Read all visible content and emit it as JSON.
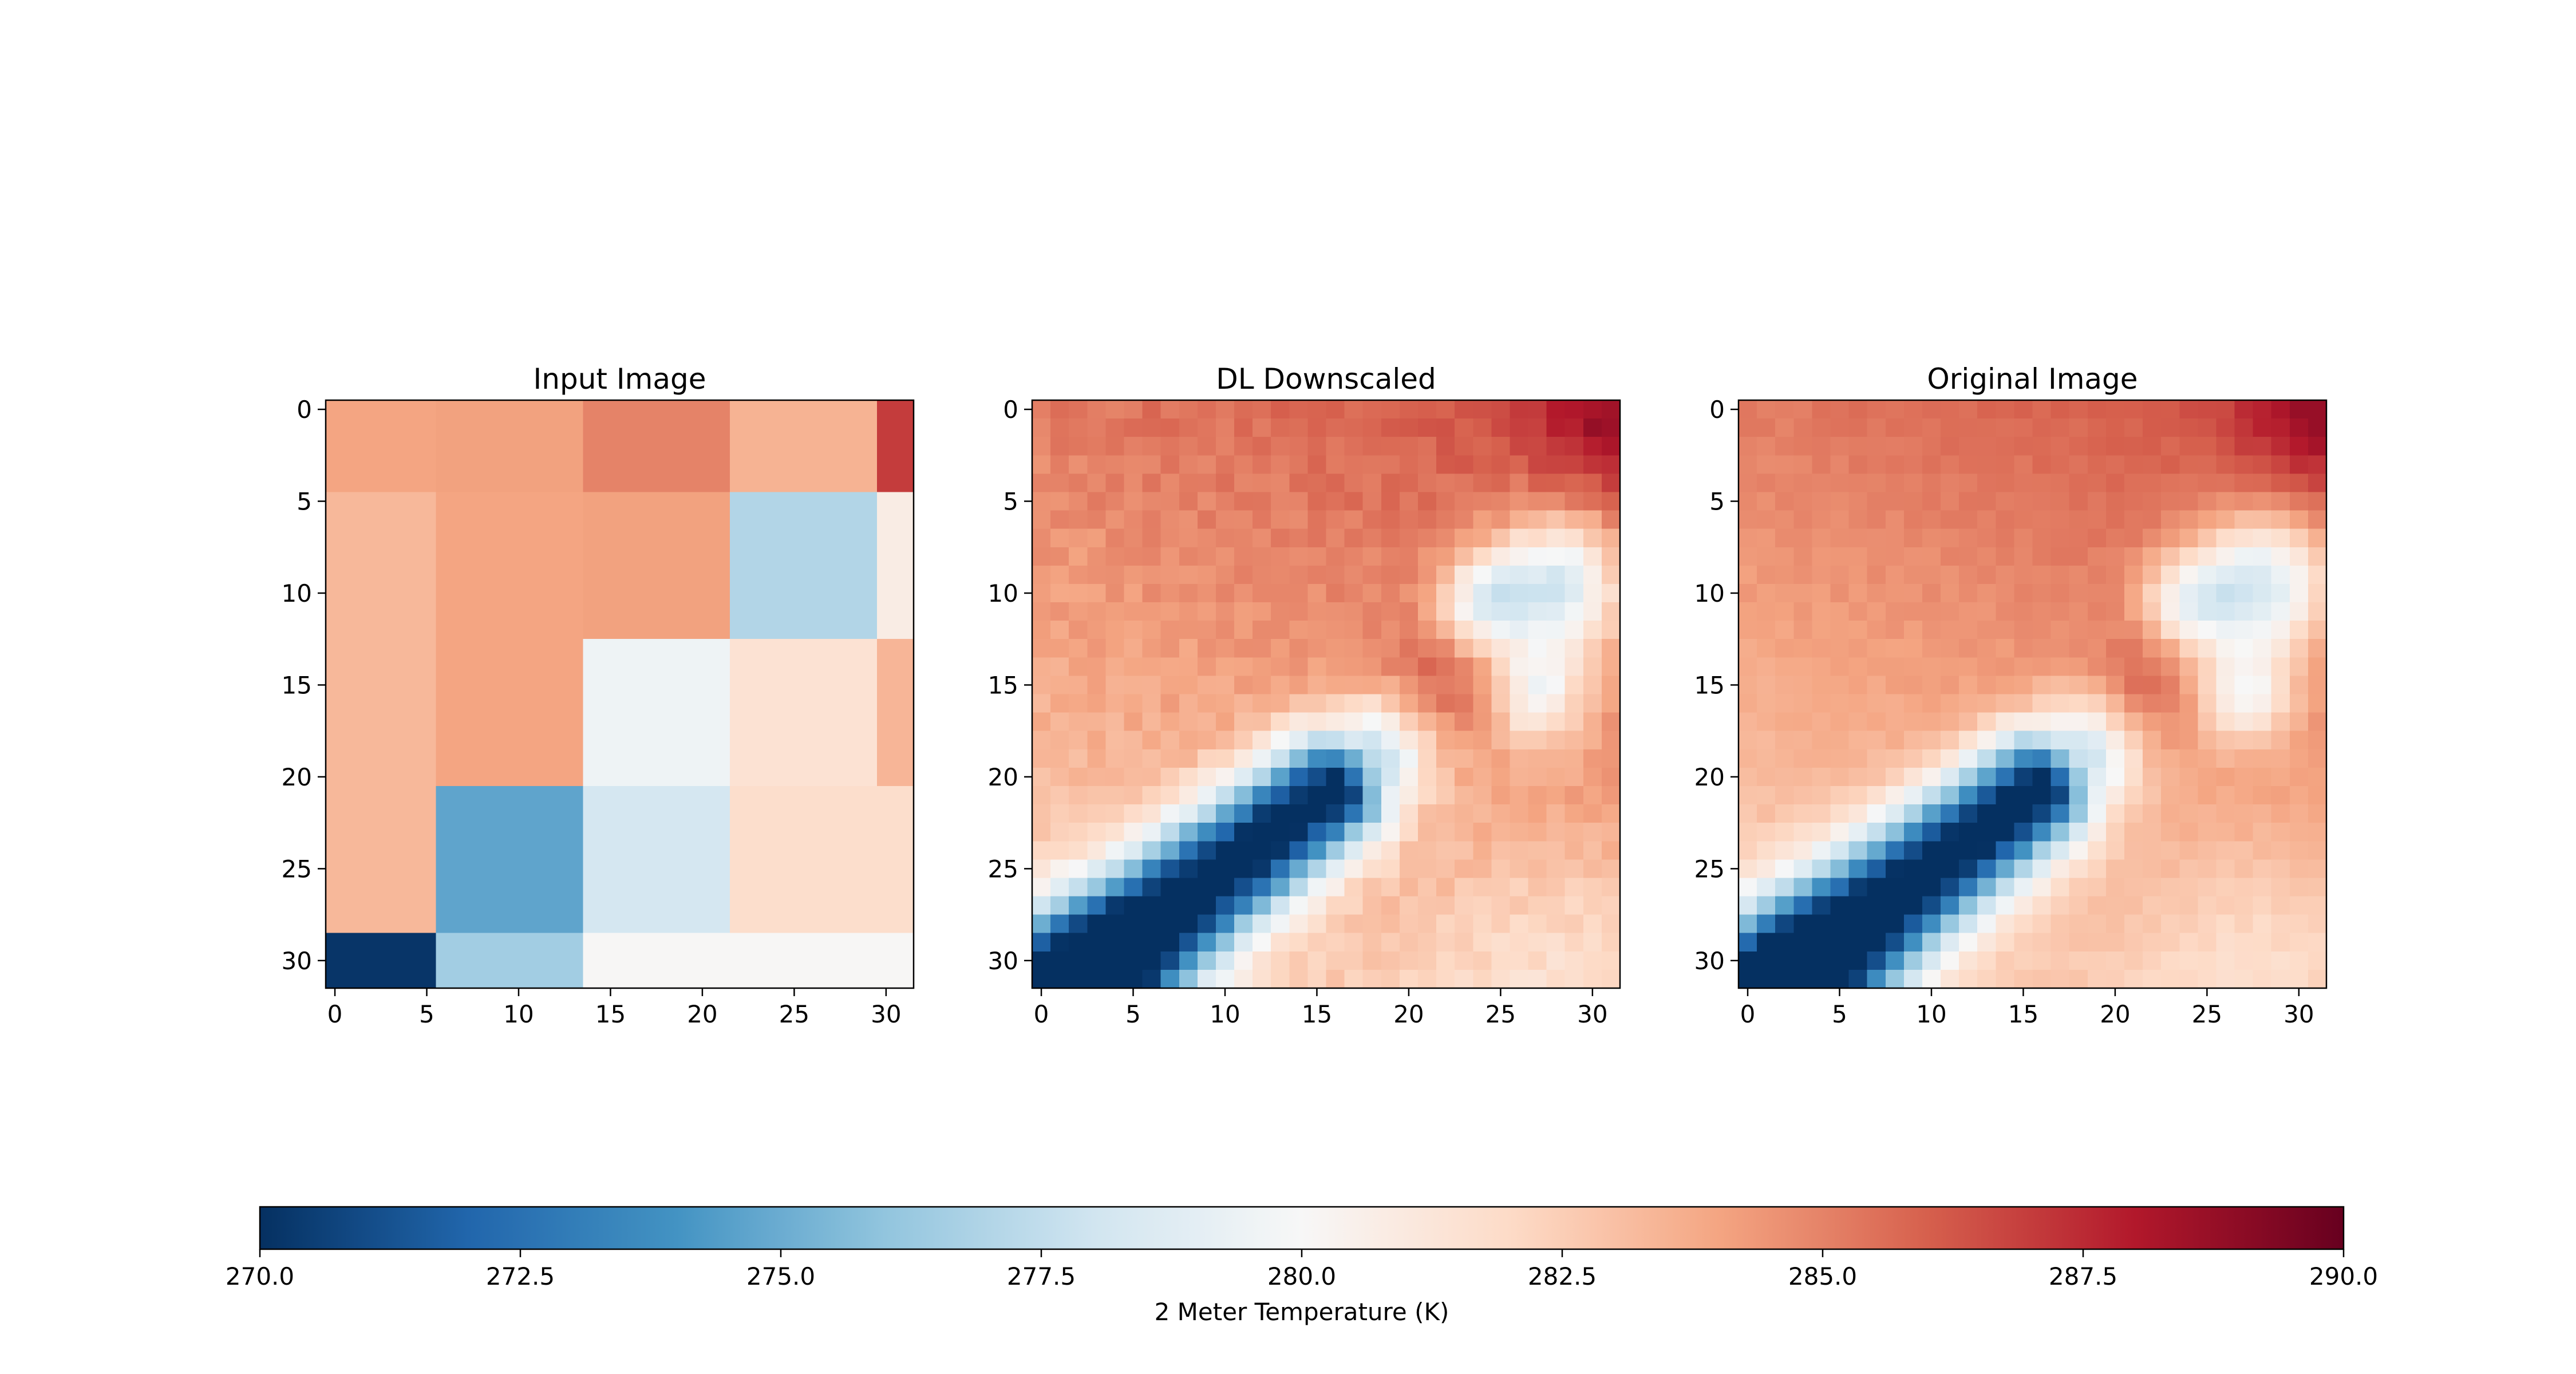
{
  "figure": {
    "colorbar_label": "2 Meter Temperature (K)"
  },
  "chart_data": [
    {
      "type": "heatmap",
      "title": "Input Image",
      "x_ticks": [
        0,
        5,
        10,
        15,
        20,
        25,
        30
      ],
      "y_ticks": [
        0,
        5,
        10,
        15,
        20,
        25,
        30
      ],
      "x_range": [
        -0.5,
        31.5
      ],
      "y_range": [
        -0.5,
        31.5
      ],
      "grid_size": 32,
      "note": "coarse blocks (row ranges x column ranges) in Kelvin",
      "row_edges": [
        -0.5,
        4.5,
        12.5,
        20.5,
        28.5,
        31.5
      ],
      "col_edges": [
        -0.5,
        5.5,
        13.5,
        21.5,
        29.5,
        31.5
      ],
      "blocks": [
        [
          284.0,
          284.1,
          285.0,
          283.5,
          287.0
        ],
        [
          283.3,
          284.0,
          284.1,
          277.0,
          280.8
        ],
        [
          283.3,
          284.0,
          279.5,
          281.5,
          283.4
        ],
        [
          283.3,
          274.7,
          278.2,
          281.8,
          281.8
        ],
        [
          270.2,
          276.5,
          280.1,
          280.1,
          280.1
        ]
      ]
    },
    {
      "type": "heatmap",
      "title": "DL Downscaled",
      "x_ticks": [
        0,
        5,
        10,
        15,
        20,
        25,
        30
      ],
      "y_ticks": [
        0,
        5,
        10,
        15,
        20,
        25,
        30
      ],
      "x_range": [
        -0.5,
        31.5
      ],
      "y_range": [
        -0.5,
        31.5
      ],
      "grid_size": 32,
      "sample_values_K": {
        "top_left": 284.2,
        "top_right": 286.5,
        "cold_band_bottom_left": 270.5,
        "cold_patch_center": 271.5,
        "right_cool_region": 277.5,
        "bottom_right": 281.0
      }
    },
    {
      "type": "heatmap",
      "title": "Original Image",
      "x_ticks": [
        0,
        5,
        10,
        15,
        20,
        25,
        30
      ],
      "y_ticks": [
        0,
        5,
        10,
        15,
        20,
        25,
        30
      ],
      "x_range": [
        -0.5,
        31.5
      ],
      "y_range": [
        -0.5,
        31.5
      ],
      "grid_size": 32,
      "sample_values_K": {
        "top_left": 284.2,
        "top_right": 286.5,
        "cold_band_bottom_left": 270.3,
        "cold_patch_center": 271.0,
        "right_cool_region": 277.2,
        "bottom_right": 281.0
      }
    },
    {
      "type": "colorbar",
      "colormap": "RdBu_r",
      "vmin": 270.0,
      "vmax": 290.0,
      "ticks": [
        "270.0",
        "272.5",
        "275.0",
        "277.5",
        "280.0",
        "282.5",
        "285.0",
        "287.5",
        "290.0"
      ],
      "label": "2 Meter Temperature (K)"
    }
  ]
}
